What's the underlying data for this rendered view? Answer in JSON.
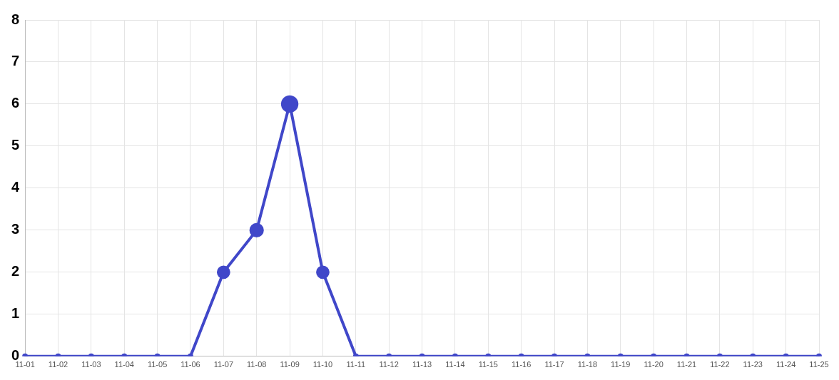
{
  "chart_data": {
    "type": "line",
    "categories": [
      "11-01",
      "11-02",
      "11-03",
      "11-04",
      "11-05",
      "11-06",
      "11-07",
      "11-08",
      "11-09",
      "11-10",
      "11-11",
      "11-12",
      "11-13",
      "11-14",
      "11-15",
      "11-16",
      "11-17",
      "11-18",
      "11-19",
      "11-20",
      "11-21",
      "11-22",
      "11-23",
      "11-24",
      "11-25"
    ],
    "series": [
      {
        "color": "#4047c9",
        "values": [
          0,
          0,
          0,
          0,
          0,
          0,
          2,
          3,
          6,
          2,
          0,
          0,
          0,
          0,
          0,
          0,
          0,
          0,
          0,
          0,
          0,
          0,
          0,
          0,
          0
        ]
      }
    ],
    "ylim": [
      0,
      8
    ],
    "yticks": [
      0,
      1,
      2,
      3,
      4,
      5,
      6,
      7,
      8
    ],
    "grid": true,
    "legend": false,
    "marker": "circle",
    "line_style": "solid"
  }
}
